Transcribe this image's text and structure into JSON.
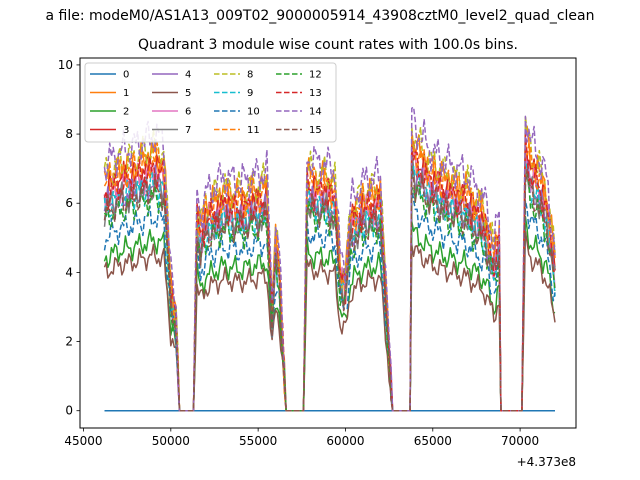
{
  "chart_data": {
    "type": "line",
    "figure_title": "a file: modeM0/AS1A13_009T02_9000005914_43908cztM0_level2_quad_clean",
    "title": "Quadrant 3 module wise count rates with 100.0s bins.",
    "xlabel": "",
    "ylabel": "",
    "x_offset_label": "+4.373e8",
    "xlim": [
      44800,
      73200
    ],
    "ylim": [
      -0.5,
      10.2
    ],
    "x_ticks": [
      45000,
      50000,
      55000,
      60000,
      65000,
      70000
    ],
    "x_tick_labels": [
      "45000",
      "50000",
      "55000",
      "60000",
      "65000",
      "70000"
    ],
    "y_ticks": [
      0,
      2,
      4,
      6,
      8,
      10
    ],
    "y_tick_labels": [
      "0",
      "2",
      "4",
      "6",
      "8",
      "10"
    ],
    "grid": false,
    "legend_position": "top-left",
    "legend_columns": 4,
    "profile": {
      "x": [
        46200,
        47000,
        48000,
        49000,
        49600,
        50000,
        50300,
        50500,
        51300,
        51500,
        51700,
        52000,
        53000,
        54000,
        55000,
        55500,
        55800,
        56000,
        56200,
        56600,
        57600,
        57800,
        58000,
        59000,
        59400,
        59700,
        60000,
        60300,
        61000,
        62000,
        62700,
        63700,
        63800,
        64000,
        65000,
        66000,
        67000,
        68000,
        68500,
        68800,
        68900,
        70100,
        70300,
        70600,
        71000,
        71500,
        72000
      ],
      "y": [
        1.0,
        1.05,
        1.08,
        1.12,
        1.1,
        0.55,
        0.42,
        0.0,
        0.0,
        0.9,
        0.8,
        0.88,
        0.95,
        0.93,
        0.96,
        0.98,
        0.45,
        0.75,
        0.65,
        0.0,
        0.0,
        1.05,
        1.02,
        1.0,
        0.98,
        0.62,
        0.58,
        0.85,
        0.93,
        0.96,
        0.0,
        0.0,
        1.22,
        1.15,
        1.05,
        1.0,
        0.96,
        0.85,
        0.68,
        0.8,
        0.0,
        0.0,
        1.22,
        1.1,
        1.05,
        0.95,
        0.65
      ]
    },
    "series": [
      {
        "name": "0",
        "color": "#1f77b4",
        "dashed": false,
        "level": 0.0
      },
      {
        "name": "1",
        "color": "#ff7f0e",
        "dashed": false,
        "level": 6.6
      },
      {
        "name": "2",
        "color": "#2ca02c",
        "dashed": false,
        "level": 4.4
      },
      {
        "name": "3",
        "color": "#d62728",
        "dashed": false,
        "level": 6.3
      },
      {
        "name": "4",
        "color": "#9467bd",
        "dashed": false,
        "level": 5.9
      },
      {
        "name": "5",
        "color": "#8c564b",
        "dashed": false,
        "level": 4.0
      },
      {
        "name": "6",
        "color": "#e377c2",
        "dashed": false,
        "level": 6.1
      },
      {
        "name": "7",
        "color": "#7f7f7f",
        "dashed": false,
        "level": 5.8
      },
      {
        "name": "8",
        "color": "#bcbd22",
        "dashed": true,
        "level": 6.8
      },
      {
        "name": "9",
        "color": "#17becf",
        "dashed": true,
        "level": 5.8
      },
      {
        "name": "10",
        "color": "#1f77b4",
        "dashed": true,
        "level": 5.0
      },
      {
        "name": "11",
        "color": "#ff7f0e",
        "dashed": true,
        "level": 6.5
      },
      {
        "name": "12",
        "color": "#2ca02c",
        "dashed": true,
        "level": 5.5
      },
      {
        "name": "13",
        "color": "#d62728",
        "dashed": true,
        "level": 6.2
      },
      {
        "name": "14",
        "color": "#9467bd",
        "dashed": true,
        "level": 7.1
      },
      {
        "name": "15",
        "color": "#8c564b",
        "dashed": true,
        "level": 5.7
      }
    ]
  }
}
